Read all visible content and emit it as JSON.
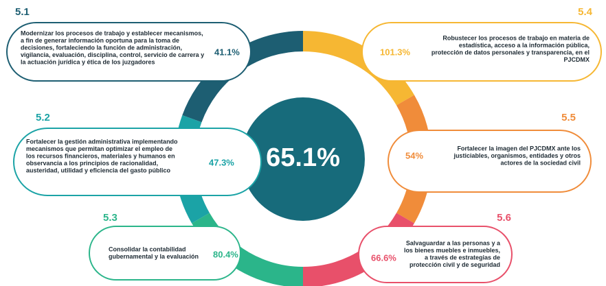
{
  "center": {
    "value": "65.1%",
    "color": "#176b7b"
  },
  "items": [
    {
      "label": "5.1",
      "color": "#1d5e72",
      "percent": "41.1%",
      "lines": [
        "Modernizar los procesos de trabajo y establecer mecanismos,",
        "a fin de generar información oportuna para la toma de",
        "decisiones, fortaleciendo la función de administración,",
        "vigilancia, evaluación, disciplina, control, servicio de carrera y",
        "la actuación jurídica y ética de los juzgadores"
      ]
    },
    {
      "label": "5.2",
      "color": "#1ba3a6",
      "percent": "47.3%",
      "lines": [
        "Fortalecer la gestión administrativa implementando",
        "mecanismos que permitan optimizar el empleo de",
        "los recursos financieros, materiales y humanos en",
        "observancia a los principios de racionalidad,",
        "austeridad, utilidad y eficiencia del gasto público"
      ]
    },
    {
      "label": "5.3",
      "color": "#2bb58a",
      "percent": "80.4%",
      "lines": [
        "Consolidar la contabilidad",
        "gubernamental y la evaluación"
      ]
    },
    {
      "label": "5.4",
      "color": "#f6b733",
      "percent": "101.3%",
      "lines": [
        "Robustecer los procesos de trabajo en materia de",
        "estadística, acceso a la información pública,",
        "protección de datos personales y transparencia, en el",
        "PJCDMX"
      ]
    },
    {
      "label": "5.5",
      "color": "#f08c3a",
      "percent": "54%",
      "lines": [
        "Fortalecer la imagen del PJCDMX ante los",
        "justiciables, organismos, entidades y otros",
        "actores de la sociedad civil"
      ]
    },
    {
      "label": "5.6",
      "color": "#e8506a",
      "percent": "66.6%",
      "lines": [
        "Salvaguardar a las personas y a",
        "los bienes muebles e inmuebles,",
        "a través de estrategias de",
        "protección civil y de seguridad"
      ]
    }
  ]
}
